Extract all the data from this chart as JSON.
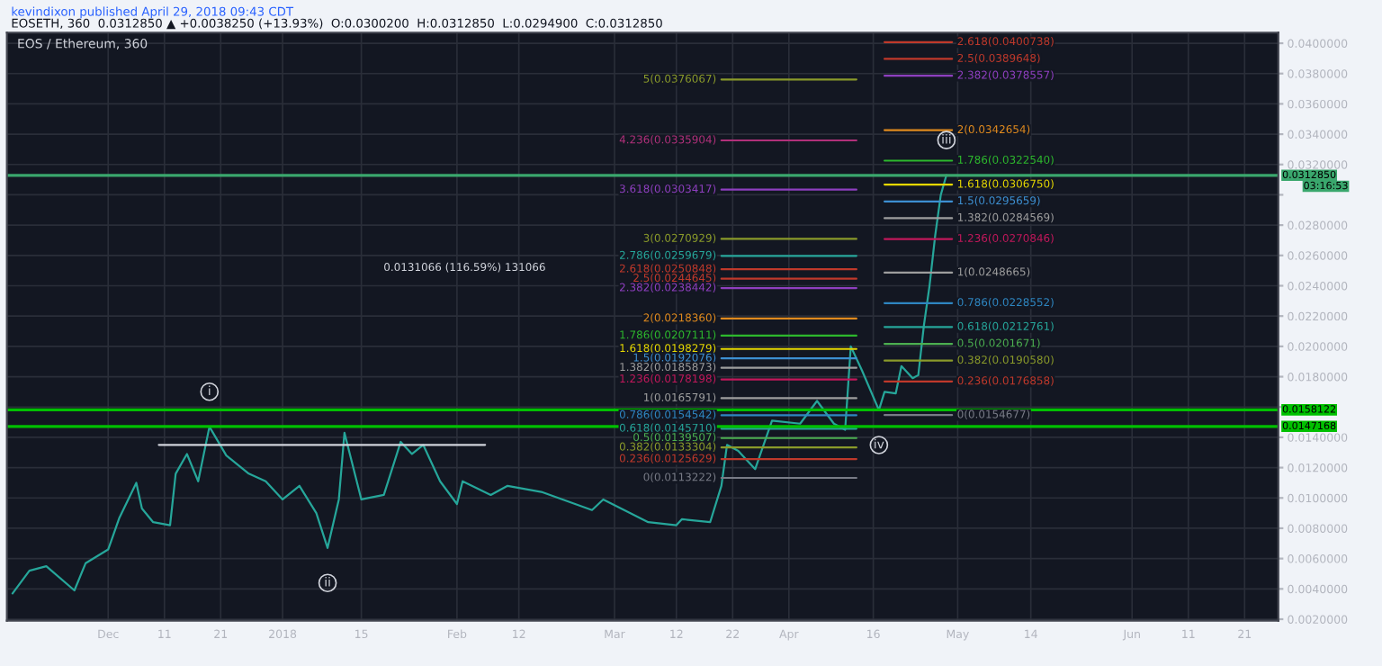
{
  "chart_data": {
    "type": "line",
    "title": "EOS / Ethereum, 360",
    "subtitle": "EOSETH, 360  0.0312850 ▲ +0.0038250 (+13.93%)  O:0.0300200  H:0.0312850  L:0.0294900  C:0.0312850",
    "annotations": [
      "kevindixon published April 29, 2018 09:43 CDT",
      "03:16:53",
      "0.0131066 (116.59%) 131066",
      {
        "text": "i",
        "x": "2017-12-19",
        "y": 0.0147
      },
      {
        "text": "ii",
        "x": "2018-01-09",
        "y": 0.0067
      },
      {
        "text": "iii",
        "x": "2018-04-29",
        "y": 0.0313
      },
      {
        "text": "iv",
        "x": "2018-04-17",
        "y": 0.0158
      }
    ],
    "series": [
      {
        "color": "#26a69a",
        "x": [
          "2017-11-14",
          "2017-11-17",
          "2017-11-20",
          "2017-11-25",
          "2017-11-27",
          "2017-12-01",
          "2017-12-03",
          "2017-12-06",
          "2017-12-07",
          "2017-12-09",
          "2017-12-12",
          "2017-12-13",
          "2017-12-15",
          "2017-12-17",
          "2017-12-19",
          "2017-12-22",
          "2017-12-26",
          "2017-12-29",
          "2018-01-01",
          "2018-01-04",
          "2018-01-07",
          "2018-01-09",
          "2018-01-11",
          "2018-01-12",
          "2018-01-15",
          "2018-01-19",
          "2018-01-22",
          "2018-01-24",
          "2018-01-26",
          "2018-01-29",
          "2018-02-01",
          "2018-02-02",
          "2018-02-07",
          "2018-02-10",
          "2018-02-16",
          "2018-02-25",
          "2018-02-27",
          "2018-03-07",
          "2018-03-12",
          "2018-03-13",
          "2018-03-18",
          "2018-03-20",
          "2018-03-21",
          "2018-03-23",
          "2018-03-26",
          "2018-03-29",
          "2018-04-03",
          "2018-04-06",
          "2018-04-09",
          "2018-04-11",
          "2018-04-12",
          "2018-04-14",
          "2018-04-17",
          "2018-04-18",
          "2018-04-20",
          "2018-04-21",
          "2018-04-23",
          "2018-04-24",
          "2018-04-25",
          "2018-04-26",
          "2018-04-27",
          "2018-04-28",
          "2018-04-29"
        ],
        "values": [
          0.0037,
          0.0052,
          0.0055,
          0.0039,
          0.0057,
          0.0066,
          0.0087,
          0.011,
          0.0093,
          0.0084,
          0.0082,
          0.0116,
          0.0129,
          0.0111,
          0.0147,
          0.0128,
          0.0116,
          0.0111,
          0.0099,
          0.0108,
          0.009,
          0.0067,
          0.0099,
          0.0143,
          0.0099,
          0.0102,
          0.0137,
          0.0129,
          0.0135,
          0.0111,
          0.0096,
          0.0111,
          0.0102,
          0.0108,
          0.0104,
          0.0092,
          0.0099,
          0.0084,
          0.0082,
          0.0086,
          0.0084,
          0.0108,
          0.0135,
          0.0131,
          0.0119,
          0.0151,
          0.0149,
          0.0164,
          0.0149,
          0.0145,
          0.02,
          0.0184,
          0.0158,
          0.017,
          0.0169,
          0.0187,
          0.0179,
          0.0181,
          0.0214,
          0.024,
          0.0273,
          0.03,
          0.0313
        ]
      },
      {
        "color": "#d1d4dc",
        "x": [
          "2017-12-10",
          "2018-02-06"
        ],
        "values": [
          0.0135,
          0.0135
        ]
      },
      {
        "name": "5(0.0376067)",
        "color": "#8a9a2a",
        "x": [
          "2018-03-20",
          "2018-04-13"
        ],
        "values": [
          0.0376067,
          0.0376067
        ]
      },
      {
        "name": "4.236(0.0335904)",
        "color": "#b0307a",
        "x": [
          "2018-03-20",
          "2018-04-13"
        ],
        "values": [
          0.0335904,
          0.0335904
        ]
      },
      {
        "name": "3.618(0.0303417)",
        "color": "#8e3fbf",
        "x": [
          "2018-03-20",
          "2018-04-13"
        ],
        "values": [
          0.0303417,
          0.0303417
        ]
      },
      {
        "name": "3(0.0270929)",
        "color": "#8a9a2a",
        "x": [
          "2018-03-20",
          "2018-04-13"
        ],
        "values": [
          0.0270929,
          0.0270929
        ]
      },
      {
        "name": "2.786(0.0259679)",
        "color": "#26a69a",
        "x": [
          "2018-03-20",
          "2018-04-13"
        ],
        "values": [
          0.0259679,
          0.0259679
        ]
      },
      {
        "name": "2.618(0.0250848)",
        "color": "#c0392b",
        "x": [
          "2018-03-20",
          "2018-04-13"
        ],
        "values": [
          0.0250848,
          0.0250848
        ]
      },
      {
        "name": "2.5(0.0244645)",
        "color": "#c0392b",
        "x": [
          "2018-03-20",
          "2018-04-13"
        ],
        "values": [
          0.0244645,
          0.0244645
        ]
      },
      {
        "name": "2.382(0.0238442)",
        "color": "#8e3fbf",
        "x": [
          "2018-03-20",
          "2018-04-13"
        ],
        "values": [
          0.0238442,
          0.0238442
        ]
      },
      {
        "name": "2(0.0218360)",
        "color": "#e08a1e",
        "x": [
          "2018-03-20",
          "2018-04-13"
        ],
        "values": [
          0.021836,
          0.021836
        ]
      },
      {
        "name": "1.786(0.0207111)",
        "color": "#2db82d",
        "x": [
          "2018-03-20",
          "2018-04-13"
        ],
        "values": [
          0.0207111,
          0.0207111
        ]
      },
      {
        "name": "1.618(0.0198279)",
        "color": "#e6d800",
        "x": [
          "2018-03-20",
          "2018-04-13"
        ],
        "values": [
          0.0198279,
          0.0198279
        ]
      },
      {
        "name": "1.5(0.0192076)",
        "color": "#3d8fd1",
        "x": [
          "2018-03-20",
          "2018-04-13"
        ],
        "values": [
          0.0192076,
          0.0192076
        ]
      },
      {
        "name": "1.382(0.0185873)",
        "color": "#9e9e9e",
        "x": [
          "2018-03-20",
          "2018-04-13"
        ],
        "values": [
          0.0185873,
          0.0185873
        ]
      },
      {
        "name": "1.236(0.0178198)",
        "color": "#c2185b",
        "x": [
          "2018-03-20",
          "2018-04-13"
        ],
        "values": [
          0.0178198,
          0.0178198
        ]
      },
      {
        "name": "1(0.0165791)",
        "color": "#9e9e9e",
        "x": [
          "2018-03-20",
          "2018-04-13"
        ],
        "values": [
          0.0165791,
          0.0165791
        ]
      },
      {
        "name": "0.786(0.0154542)",
        "color": "#2e86c1",
        "x": [
          "2018-03-20",
          "2018-04-13"
        ],
        "values": [
          0.0154542,
          0.0154542
        ]
      },
      {
        "name": "0.618(0.0145710)",
        "color": "#26a69a",
        "x": [
          "2018-03-20",
          "2018-04-13"
        ],
        "values": [
          0.014571,
          0.014571
        ]
      },
      {
        "name": "0.5(0.0139507)",
        "color": "#4caf50",
        "x": [
          "2018-03-20",
          "2018-04-13"
        ],
        "values": [
          0.0139507,
          0.0139507
        ]
      },
      {
        "name": "0.382(0.0133304)",
        "color": "#8a9a2a",
        "x": [
          "2018-03-20",
          "2018-04-13"
        ],
        "values": [
          0.0133304,
          0.0133304
        ]
      },
      {
        "name": "0.236(0.0125629)",
        "color": "#c0392b",
        "x": [
          "2018-03-20",
          "2018-04-13"
        ],
        "values": [
          0.0125629,
          0.0125629
        ]
      },
      {
        "name": "0(0.0113222)",
        "color": "#787b86",
        "x": [
          "2018-03-20",
          "2018-04-13"
        ],
        "values": [
          0.0113222,
          0.0113222
        ]
      },
      {
        "name": "2.618(0.0400738)",
        "color": "#c0392b",
        "x": [
          "2018-04-18",
          "2018-04-30"
        ],
        "values": [
          0.0400738,
          0.0400738
        ]
      },
      {
        "name": "2.5(0.0389648)",
        "color": "#c0392b",
        "x": [
          "2018-04-18",
          "2018-04-30"
        ],
        "values": [
          0.0389648,
          0.0389648
        ]
      },
      {
        "name": "2.382(0.0378557)",
        "color": "#8e3fbf",
        "x": [
          "2018-04-18",
          "2018-04-30"
        ],
        "values": [
          0.0378557,
          0.0378557
        ]
      },
      {
        "name": "2(0.0342654)",
        "color": "#e08a1e",
        "x": [
          "2018-04-18",
          "2018-04-30"
        ],
        "values": [
          0.0342654,
          0.0342654
        ]
      },
      {
        "name": "1.786(0.0322540)",
        "color": "#2db82d",
        "x": [
          "2018-04-18",
          "2018-04-30"
        ],
        "values": [
          0.032254,
          0.032254
        ]
      },
      {
        "name": "1.618(0.0306750)",
        "color": "#e6d800",
        "x": [
          "2018-04-18",
          "2018-04-30"
        ],
        "values": [
          0.030675,
          0.030675
        ]
      },
      {
        "name": "1.5(0.0295659)",
        "color": "#3d8fd1",
        "x": [
          "2018-04-18",
          "2018-04-30"
        ],
        "values": [
          0.0295659,
          0.0295659
        ]
      },
      {
        "name": "1.382(0.0284569)",
        "color": "#9e9e9e",
        "x": [
          "2018-04-18",
          "2018-04-30"
        ],
        "values": [
          0.0284569,
          0.0284569
        ]
      },
      {
        "name": "1.236(0.0270846)",
        "color": "#c2185b",
        "x": [
          "2018-04-18",
          "2018-04-30"
        ],
        "values": [
          0.0270846,
          0.0270846
        ]
      },
      {
        "name": "1(0.0248665)",
        "color": "#9e9e9e",
        "x": [
          "2018-04-18",
          "2018-04-30"
        ],
        "values": [
          0.0248665,
          0.0248665
        ]
      },
      {
        "name": "0.786(0.0228552)",
        "color": "#2e86c1",
        "x": [
          "2018-04-18",
          "2018-04-30"
        ],
        "values": [
          0.0228552,
          0.0228552
        ]
      },
      {
        "name": "0.618(0.0212761)",
        "color": "#26a69a",
        "x": [
          "2018-04-18",
          "2018-04-30"
        ],
        "values": [
          0.0212761,
          0.0212761
        ]
      },
      {
        "name": "0.5(0.0201671)",
        "color": "#4caf50",
        "x": [
          "2018-04-18",
          "2018-04-30"
        ],
        "values": [
          0.0201671,
          0.0201671
        ]
      },
      {
        "name": "0.382(0.0190580)",
        "color": "#8a9a2a",
        "x": [
          "2018-04-18",
          "2018-04-30"
        ],
        "values": [
          0.019058,
          0.019058
        ]
      },
      {
        "name": "0.236(0.0176858)",
        "color": "#c0392b",
        "x": [
          "2018-04-18",
          "2018-04-30"
        ],
        "values": [
          0.0176858,
          0.0176858
        ]
      },
      {
        "name": "0(0.0154677)",
        "color": "#787b86",
        "x": [
          "2018-04-18",
          "2018-04-30"
        ],
        "values": [
          0.0154677,
          0.0154677
        ]
      }
    ],
    "ref_lines": [
      {
        "axis": "y",
        "value": 0.031285,
        "label": "0.0312850",
        "color": "#3aa76d"
      },
      {
        "axis": "y",
        "value": 0.0158122,
        "label": "0.0158122",
        "color": "#00c000"
      },
      {
        "axis": "y",
        "value": 0.0147168,
        "label": "0.0147168",
        "color": "#00c000"
      }
    ],
    "xlim": [
      "2017-11-13",
      "2018-06-27"
    ],
    "xticks": [
      {
        "value": "2017-12-01",
        "label": "Dec"
      },
      {
        "value": "2017-12-11",
        "label": "11"
      },
      {
        "value": "2017-12-21",
        "label": "21"
      },
      {
        "value": "2018-01-01",
        "label": "2018"
      },
      {
        "value": "2018-01-15",
        "label": "15"
      },
      {
        "value": "2018-02-01",
        "label": "Feb"
      },
      {
        "value": "2018-02-12",
        "label": "12"
      },
      {
        "value": "2018-03-01",
        "label": "Mar"
      },
      {
        "value": "2018-03-12",
        "label": "12"
      },
      {
        "value": "2018-03-22",
        "label": "22"
      },
      {
        "value": "2018-04-01",
        "label": "Apr"
      },
      {
        "value": "2018-04-16",
        "label": "16"
      },
      {
        "value": "2018-05-01",
        "label": "May"
      },
      {
        "value": "2018-05-14",
        "label": "14"
      },
      {
        "value": "2018-06-01",
        "label": "Jun"
      },
      {
        "value": "2018-06-11",
        "label": "11"
      },
      {
        "value": "2018-06-21",
        "label": "21"
      }
    ],
    "ylim": [
      0.0019,
      0.0407
    ],
    "yticks": [
      {
        "value": 0.002,
        "label": "0.0020000"
      },
      {
        "value": 0.004,
        "label": "0.0040000"
      },
      {
        "value": 0.006,
        "label": "0.0060000"
      },
      {
        "value": 0.008,
        "label": "0.0080000"
      },
      {
        "value": 0.01,
        "label": "0.0100000"
      },
      {
        "value": 0.012,
        "label": "0.0120000"
      },
      {
        "value": 0.014,
        "label": "0.0140000"
      },
      {
        "value": 0.016,
        "label": null
      },
      {
        "value": 0.018,
        "label": "0.0180000"
      },
      {
        "value": 0.02,
        "label": "0.0200000"
      },
      {
        "value": 0.022,
        "label": "0.0220000"
      },
      {
        "value": 0.024,
        "label": "0.0240000"
      },
      {
        "value": 0.026,
        "label": "0.0260000"
      },
      {
        "value": 0.028,
        "label": "0.0280000"
      },
      {
        "value": 0.03,
        "label": null
      },
      {
        "value": 0.032,
        "label": "0.0320000"
      },
      {
        "value": 0.034,
        "label": "0.0340000"
      },
      {
        "value": 0.036,
        "label": "0.0360000"
      },
      {
        "value": 0.038,
        "label": "0.0380000"
      },
      {
        "value": 0.04,
        "label": "0.0400000"
      }
    ],
    "grid": true
  }
}
